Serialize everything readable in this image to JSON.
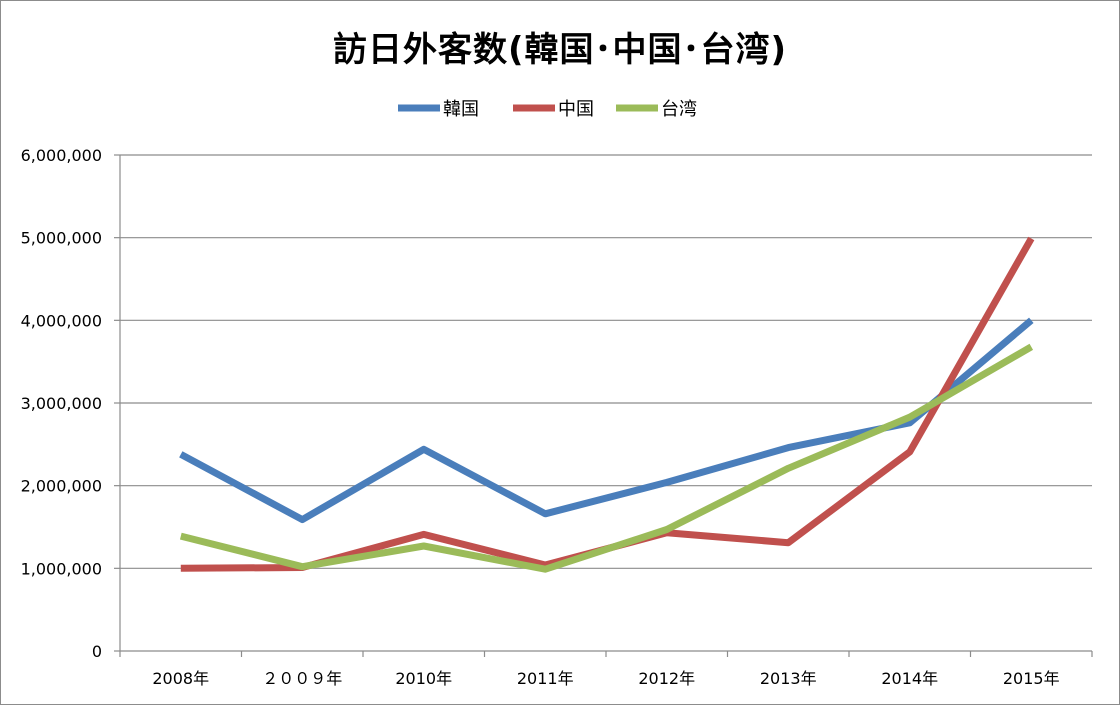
{
  "chart_data": {
    "type": "line",
    "title": "訪日外客数(韓国･中国･台湾)",
    "categories": [
      "2008年",
      "２００９年",
      "2010年",
      "2011年",
      "2012年",
      "2013年",
      "2014年",
      "2015年"
    ],
    "series": [
      {
        "name": "韓国",
        "color": "#4a7ebb",
        "values": [
          2380000,
          1590000,
          2440000,
          1660000,
          2040000,
          2460000,
          2760000,
          4000000
        ]
      },
      {
        "name": "中国",
        "color": "#c0504d",
        "values": [
          1000000,
          1010000,
          1410000,
          1040000,
          1430000,
          1310000,
          2410000,
          4990000
        ]
      },
      {
        "name": "台湾",
        "color": "#9bbb59",
        "values": [
          1390000,
          1020000,
          1270000,
          990000,
          1470000,
          2210000,
          2830000,
          3680000
        ]
      }
    ],
    "yticks": [
      "0",
      "1,000,000",
      "2,000,000",
      "3,000,000",
      "4,000,000",
      "5,000,000",
      "6,000,000"
    ],
    "ylim": [
      0,
      6000000
    ],
    "xlabel": "",
    "ylabel": "",
    "grid": true,
    "legend_position": "top"
  }
}
